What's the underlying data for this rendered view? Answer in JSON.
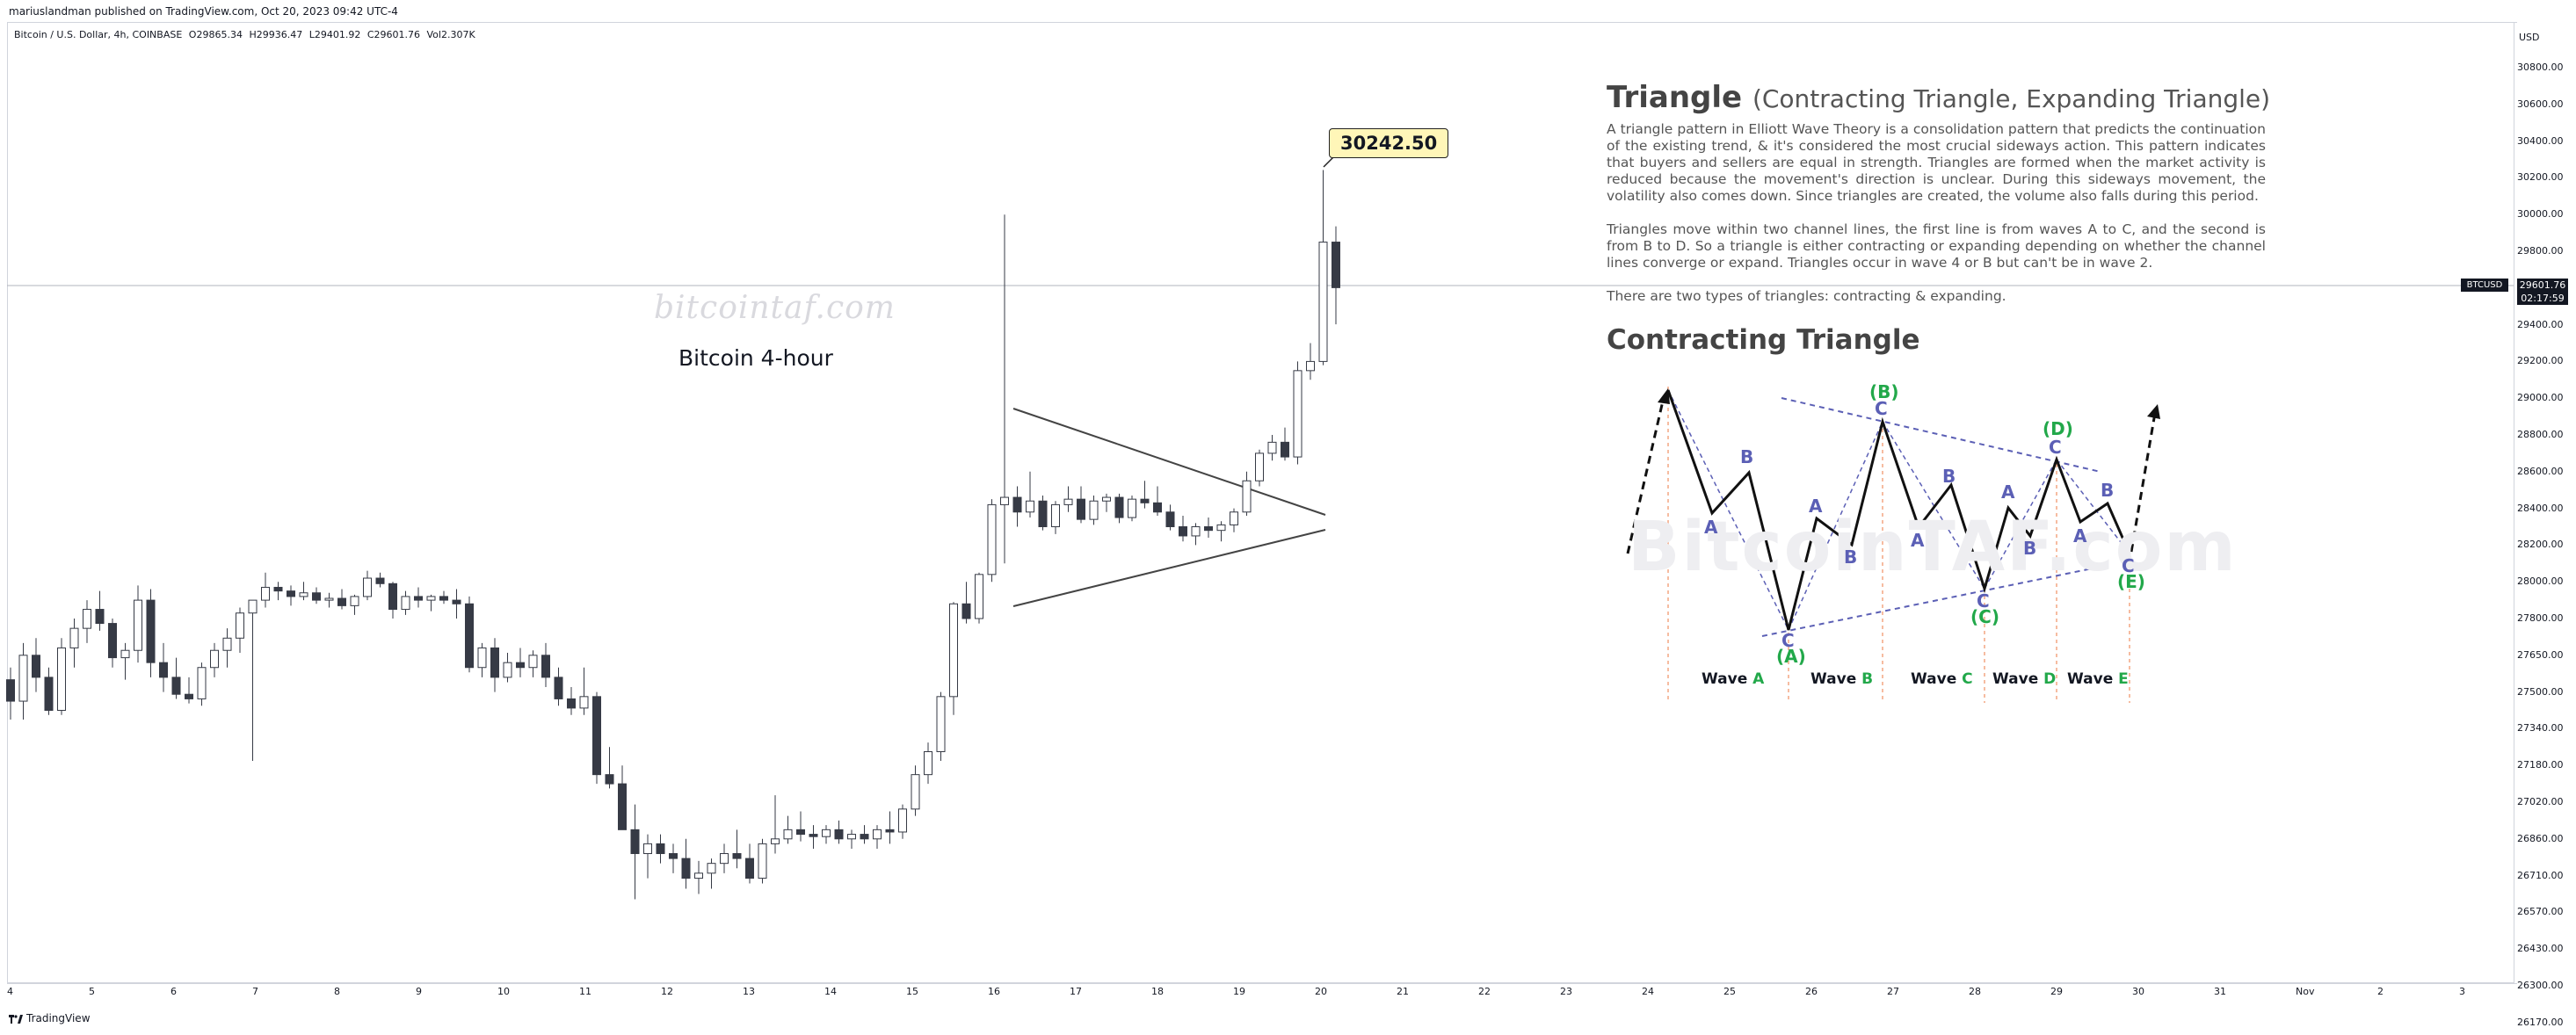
{
  "header": {
    "published": "mariuslandman published on TradingView.com, Oct 20, 2023 09:42 UTC-4"
  },
  "symbol": {
    "name": "Bitcoin / U.S. Dollar, 4h, COINBASE",
    "open": "O29865.34",
    "high": "H29936.47",
    "low": "L29401.92",
    "close": "C29601.76",
    "volume": "Vol2.307K"
  },
  "chart": {
    "watermark": "bitcointaf.com",
    "caption": "Bitcoin 4-hour",
    "high_tag": "30242.50",
    "currency": "USD",
    "ticker_tag": "BTCUSD",
    "current_price": "29601.76",
    "countdown": "02:17:59"
  },
  "chart_data": {
    "type": "candlestick",
    "price_ticks": [
      "30800.00",
      "30600.00",
      "30400.00",
      "30200.00",
      "30000.00",
      "29800.00",
      "29600.00",
      "29400.00",
      "29200.00",
      "29000.00",
      "28800.00",
      "28600.00",
      "28400.00",
      "28200.00",
      "28000.00",
      "27800.00",
      "27650.00",
      "27500.00",
      "27340.00",
      "27180.00",
      "27020.00",
      "26860.00",
      "26710.00",
      "26570.00",
      "26430.00",
      "26300.00",
      "26170.00"
    ],
    "time_ticks": [
      "4",
      "5",
      "6",
      "7",
      "8",
      "9",
      "10",
      "11",
      "12",
      "13",
      "14",
      "15",
      "16",
      "17",
      "18",
      "19",
      "20",
      "21",
      "22",
      "23",
      "24",
      "25",
      "26",
      "27",
      "28",
      "29",
      "30",
      "31",
      "Nov",
      "2",
      "3"
    ],
    "candles": [
      [
        27550,
        27600,
        27380,
        27460
      ],
      [
        27460,
        27700,
        27380,
        27650
      ],
      [
        27650,
        27720,
        27500,
        27560
      ],
      [
        27560,
        27600,
        27400,
        27420
      ],
      [
        27420,
        27720,
        27400,
        27680
      ],
      [
        27680,
        27800,
        27600,
        27760
      ],
      [
        27760,
        27900,
        27700,
        27850
      ],
      [
        27850,
        27950,
        27750,
        27780
      ],
      [
        27780,
        27800,
        27600,
        27640
      ],
      [
        27640,
        27700,
        27550,
        27670
      ],
      [
        27670,
        27980,
        27620,
        27900
      ],
      [
        27900,
        27960,
        27560,
        27620
      ],
      [
        27620,
        27700,
        27500,
        27560
      ],
      [
        27560,
        27640,
        27470,
        27490
      ],
      [
        27490,
        27560,
        27450,
        27470
      ],
      [
        27470,
        27620,
        27440,
        27600
      ],
      [
        27600,
        27700,
        27560,
        27670
      ],
      [
        27670,
        27760,
        27600,
        27720
      ],
      [
        27720,
        27860,
        27660,
        27830
      ],
      [
        27830,
        27900,
        27200,
        27900
      ],
      [
        27900,
        28050,
        27860,
        27970
      ],
      [
        27970,
        28000,
        27900,
        27950
      ],
      [
        27950,
        27980,
        27870,
        27920
      ],
      [
        27920,
        28000,
        27900,
        27940
      ],
      [
        27940,
        27970,
        27880,
        27900
      ],
      [
        27900,
        27940,
        27860,
        27910
      ],
      [
        27910,
        27960,
        27850,
        27870
      ],
      [
        27870,
        27930,
        27820,
        27920
      ],
      [
        27920,
        28060,
        27900,
        28020
      ],
      [
        28020,
        28050,
        27970,
        27990
      ],
      [
        27990,
        28000,
        27800,
        27850
      ],
      [
        27850,
        27950,
        27820,
        27920
      ],
      [
        27920,
        27970,
        27860,
        27900
      ],
      [
        27900,
        27930,
        27840,
        27920
      ],
      [
        27920,
        27950,
        27880,
        27900
      ],
      [
        27900,
        27960,
        27800,
        27880
      ],
      [
        27880,
        27920,
        27580,
        27600
      ],
      [
        27600,
        27700,
        27560,
        27680
      ],
      [
        27680,
        27720,
        27500,
        27560
      ],
      [
        27560,
        27660,
        27540,
        27620
      ],
      [
        27620,
        27680,
        27560,
        27600
      ],
      [
        27600,
        27670,
        27560,
        27650
      ],
      [
        27650,
        27700,
        27520,
        27560
      ],
      [
        27560,
        27600,
        27440,
        27470
      ],
      [
        27470,
        27520,
        27400,
        27430
      ],
      [
        27430,
        27600,
        27400,
        27480
      ],
      [
        27480,
        27500,
        27100,
        27140
      ],
      [
        27140,
        27260,
        27080,
        27100
      ],
      [
        27100,
        27180,
        26900,
        26900
      ],
      [
        26900,
        27010,
        26620,
        26800
      ],
      [
        26800,
        26880,
        26700,
        26840
      ],
      [
        26840,
        26880,
        26760,
        26800
      ],
      [
        26800,
        26840,
        26720,
        26780
      ],
      [
        26780,
        26860,
        26660,
        26700
      ],
      [
        26700,
        26770,
        26640,
        26720
      ],
      [
        26720,
        26780,
        26660,
        26760
      ],
      [
        26760,
        26840,
        26720,
        26800
      ],
      [
        26800,
        26900,
        26740,
        26780
      ],
      [
        26780,
        26840,
        26680,
        26700
      ],
      [
        26700,
        26860,
        26680,
        26840
      ],
      [
        26840,
        27050,
        26800,
        26860
      ],
      [
        26860,
        26960,
        26840,
        26900
      ],
      [
        26900,
        26980,
        26850,
        26880
      ],
      [
        26880,
        26920,
        26820,
        26870
      ],
      [
        26870,
        26920,
        26840,
        26900
      ],
      [
        26900,
        26940,
        26840,
        26860
      ],
      [
        26860,
        26900,
        26820,
        26880
      ],
      [
        26880,
        26920,
        26840,
        26860
      ],
      [
        26860,
        26920,
        26820,
        26900
      ],
      [
        26900,
        26980,
        26840,
        26890
      ],
      [
        26890,
        27010,
        26860,
        26990
      ],
      [
        26990,
        27180,
        26960,
        27140
      ],
      [
        27140,
        27280,
        27100,
        27240
      ],
      [
        27240,
        27500,
        27200,
        27480
      ],
      [
        27480,
        27890,
        27400,
        27880
      ],
      [
        27880,
        28000,
        27780,
        27800
      ],
      [
        27800,
        28050,
        27780,
        28040
      ],
      [
        28040,
        28450,
        28000,
        28420
      ],
      [
        28420,
        30000,
        28100,
        28460
      ],
      [
        28460,
        28520,
        28300,
        28380
      ],
      [
        28380,
        28600,
        28350,
        28440
      ],
      [
        28440,
        28470,
        28280,
        28300
      ],
      [
        28300,
        28440,
        28260,
        28420
      ],
      [
        28420,
        28520,
        28380,
        28450
      ],
      [
        28450,
        28520,
        28320,
        28340
      ],
      [
        28340,
        28470,
        28310,
        28440
      ],
      [
        28440,
        28480,
        28380,
        28460
      ],
      [
        28460,
        28480,
        28320,
        28350
      ],
      [
        28350,
        28470,
        28330,
        28450
      ],
      [
        28450,
        28550,
        28400,
        28430
      ],
      [
        28430,
        28520,
        28360,
        28380
      ],
      [
        28380,
        28420,
        28280,
        28300
      ],
      [
        28300,
        28360,
        28220,
        28250
      ],
      [
        28250,
        28320,
        28200,
        28300
      ],
      [
        28300,
        28350,
        28240,
        28280
      ],
      [
        28280,
        28330,
        28220,
        28310
      ],
      [
        28310,
        28400,
        28270,
        28380
      ],
      [
        28380,
        28600,
        28360,
        28550
      ],
      [
        28550,
        28720,
        28520,
        28700
      ],
      [
        28700,
        28800,
        28660,
        28760
      ],
      [
        28760,
        28840,
        28660,
        28680
      ],
      [
        28680,
        29200,
        28640,
        29150
      ],
      [
        29150,
        29300,
        29100,
        29200
      ],
      [
        29200,
        30242.5,
        29180,
        29850
      ],
      [
        29850,
        29936,
        29402,
        29602
      ]
    ],
    "annotations": [
      {
        "label": "Symmetrical triangle",
        "type": "lines"
      }
    ]
  },
  "annotation": {
    "title": "Triangle",
    "subtitle": "(Contracting Triangle, Expanding Triangle)",
    "para1": "A triangle pattern in Elliott Wave Theory is a consolidation pattern that predicts the continuation of the existing trend, & it's considered the most crucial sideways action. This pattern indicates that buyers and sellers are equal in strength. Triangles are formed when the market activity is reduced because the movement's direction is unclear. During this sideways movement, the volatility also comes down. Since triangles are created, the volume also falls during this period.",
    "para2": "Triangles move within two channel lines, the first line is from waves A to C, and the second is from B to D. So a triangle is either contracting or expanding depending on whether the channel lines converge or expand. Triangles occur in wave 4 or B but can't be in wave 2.",
    "para3": "There are two types of triangles: contracting & expanding.",
    "heading": "Contracting Triangle",
    "diagram_watermark": "BitcoinTAF.com",
    "waves": [
      {
        "word": "Wave",
        "letter": "A"
      },
      {
        "word": "Wave",
        "letter": "B"
      },
      {
        "word": "Wave",
        "letter": "C"
      },
      {
        "word": "Wave",
        "letter": "D"
      },
      {
        "word": "Wave",
        "letter": "E"
      }
    ],
    "diagram_labels": {
      "a": "A",
      "b": "B",
      "c": "C",
      "A": "(A)",
      "B": "(B)",
      "C": "(C)",
      "D": "(D)",
      "E": "(E)"
    },
    "colors": {
      "blue": "#5b5fb5",
      "green": "#22a84a",
      "orange_dash": "#f4a582",
      "dash_blue": "#5b5fb5"
    }
  },
  "footer": {
    "brand": "TradingView"
  }
}
